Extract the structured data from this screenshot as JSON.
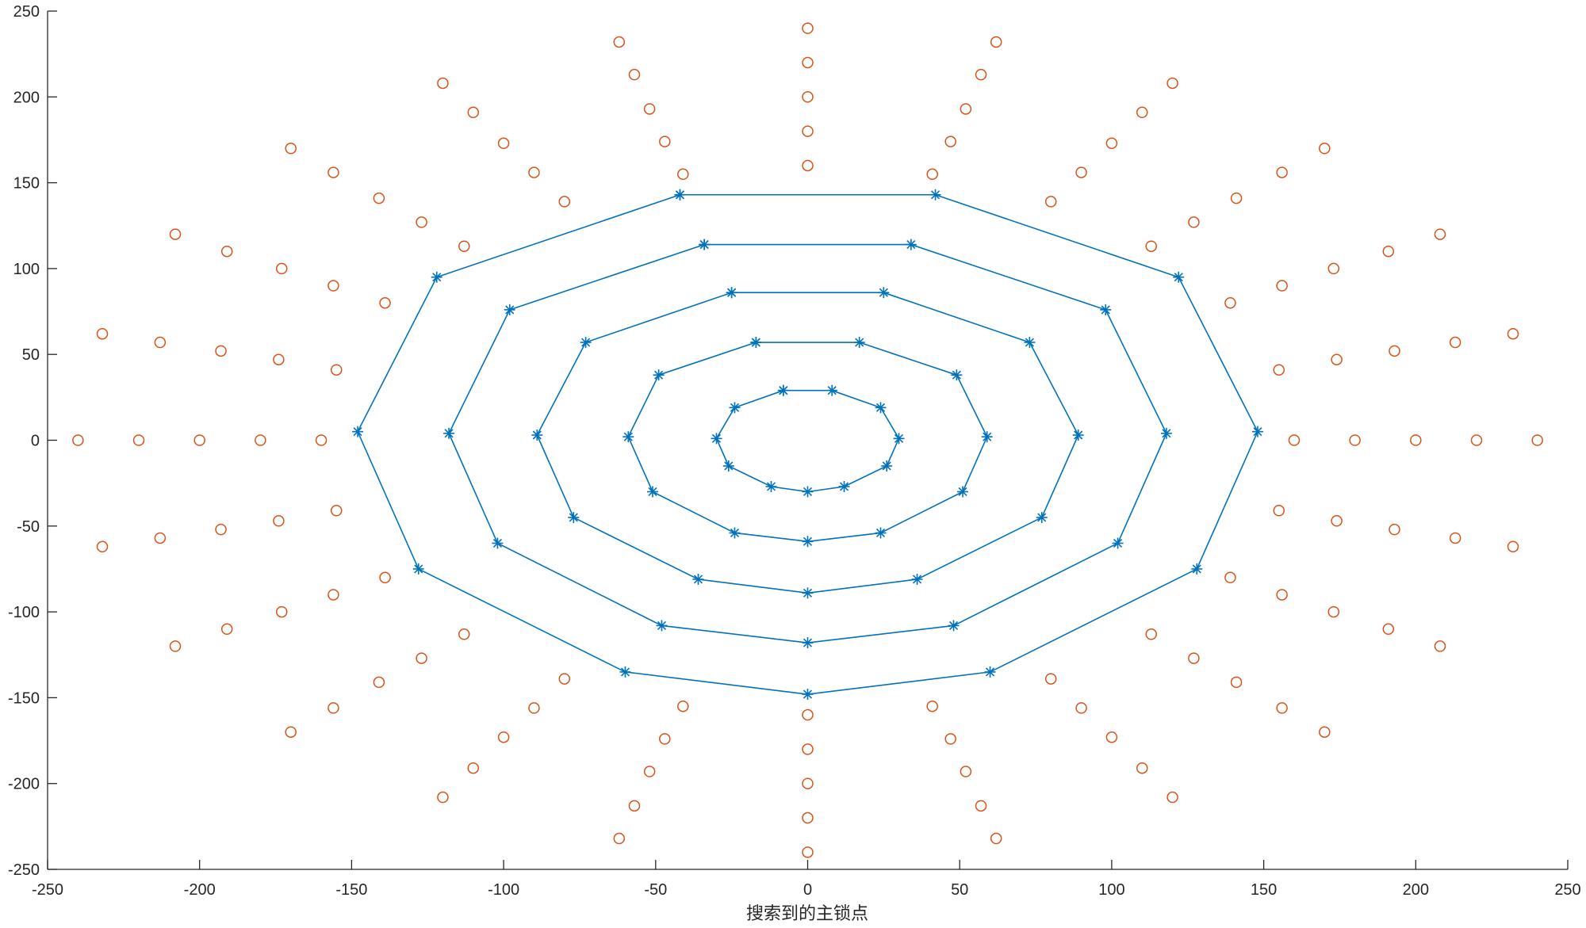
{
  "chart_data": {
    "type": "scatter",
    "xlabel": "搜索到的主锁点",
    "xlim": [
      -250,
      250
    ],
    "ylim": [
      -250,
      250
    ],
    "xticks": [
      -250,
      -200,
      -150,
      -100,
      -50,
      0,
      50,
      100,
      150,
      200,
      250
    ],
    "yticks": [
      -250,
      -200,
      -150,
      -100,
      -50,
      0,
      50,
      100,
      150,
      200,
      250
    ],
    "series": [
      {
        "color": "#d95319",
        "marker": "circle",
        "line": false,
        "x": [
          160,
          155,
          139,
          113,
          80,
          41,
          0,
          -41,
          -80,
          -113,
          -139,
          -155,
          -160,
          -155,
          -139,
          -113,
          -80,
          -41,
          0,
          41,
          80,
          113,
          139,
          155,
          180,
          174,
          156,
          127,
          90,
          47,
          0,
          -47,
          -90,
          -127,
          -156,
          -174,
          -180,
          -174,
          -156,
          -127,
          -90,
          -47,
          0,
          47,
          90,
          127,
          156,
          174,
          200,
          193,
          173,
          141,
          100,
          52,
          0,
          -52,
          -100,
          -141,
          -173,
          -193,
          -200,
          -193,
          -173,
          -141,
          -100,
          -52,
          0,
          52,
          100,
          141,
          173,
          193,
          220,
          213,
          191,
          156,
          110,
          57,
          0,
          -57,
          -110,
          -156,
          -191,
          -213,
          -220,
          -213,
          -191,
          -156,
          -110,
          -57,
          0,
          57,
          110,
          156,
          191,
          213,
          240,
          232,
          208,
          170,
          120,
          62,
          0,
          -62,
          -120,
          -170,
          -208,
          -232,
          -240,
          -232,
          -208,
          -170,
          -120,
          -62,
          0,
          62,
          120,
          170,
          208,
          232
        ],
        "y": [
          0,
          41,
          80,
          113,
          139,
          155,
          160,
          155,
          139,
          113,
          80,
          41,
          0,
          -41,
          -80,
          -113,
          -139,
          -155,
          -160,
          -155,
          -139,
          -113,
          -80,
          -41,
          0,
          47,
          90,
          127,
          156,
          174,
          180,
          174,
          156,
          127,
          90,
          47,
          0,
          -47,
          -90,
          -127,
          -156,
          -174,
          -180,
          -174,
          -156,
          -127,
          -90,
          -47,
          0,
          52,
          100,
          141,
          173,
          193,
          200,
          193,
          173,
          141,
          100,
          52,
          0,
          -52,
          -100,
          -141,
          -173,
          -193,
          -200,
          -193,
          -173,
          -141,
          -100,
          -52,
          0,
          57,
          110,
          156,
          191,
          213,
          220,
          213,
          191,
          156,
          110,
          57,
          0,
          -57,
          -110,
          -156,
          -191,
          -213,
          -220,
          -213,
          -191,
          -156,
          -110,
          -57,
          0,
          62,
          120,
          170,
          208,
          232,
          240,
          232,
          208,
          170,
          120,
          62,
          0,
          -62,
          -120,
          -170,
          -208,
          -232,
          -240,
          -232,
          -208,
          -170,
          -120,
          -62
        ]
      },
      {
        "color": "#0072bd",
        "marker": "asterisk",
        "line": true,
        "x": [
          -8,
          8,
          24,
          30,
          26,
          12,
          0,
          -12,
          -26,
          -30,
          -24,
          -8,
          null,
          -17,
          17,
          49,
          59,
          51,
          24,
          0,
          -24,
          -51,
          -59,
          -49,
          -17,
          null,
          -25,
          25,
          73,
          89,
          77,
          36,
          0,
          -36,
          -77,
          -89,
          -73,
          -25,
          null,
          -34,
          34,
          98,
          118,
          102,
          48,
          0,
          -48,
          -102,
          -118,
          -98,
          -34,
          null,
          -42,
          42,
          122,
          148,
          128,
          60,
          0,
          -60,
          -128,
          -148,
          -122,
          -42
        ],
        "y": [
          29,
          29,
          19,
          1,
          -15,
          -27,
          -30,
          -27,
          -15,
          1,
          19,
          29,
          null,
          57,
          57,
          38,
          2,
          -30,
          -54,
          -59,
          -54,
          -30,
          2,
          38,
          57,
          null,
          86,
          86,
          57,
          3,
          -45,
          -81,
          -89,
          -81,
          -45,
          3,
          57,
          86,
          null,
          114,
          114,
          76,
          4,
          -60,
          -108,
          -118,
          -108,
          -60,
          4,
          76,
          114,
          null,
          143,
          143,
          95,
          5,
          -75,
          -135,
          -148,
          -135,
          -75,
          5,
          95,
          143
        ]
      }
    ]
  }
}
